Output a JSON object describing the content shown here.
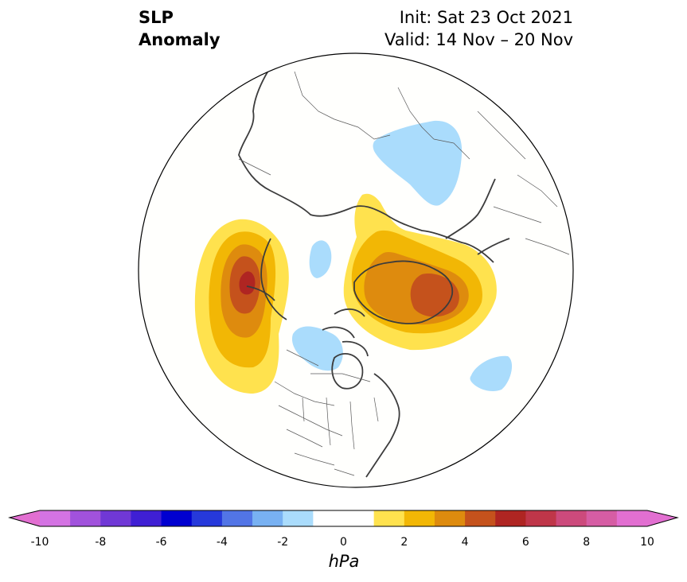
{
  "header": {
    "left_line1": "SLP",
    "left_line2": "Anomaly",
    "init": "Init: Sat 23 Oct 2021",
    "valid": "Valid: 14 Nov – 20 Nov"
  },
  "map": {
    "projection": "north-polar-stereographic",
    "features": [
      "coastlines",
      "country-borders",
      "us-state-borders",
      "canada-province-borders"
    ],
    "anomalies": [
      {
        "region": "Gulf of Alaska / NE Pacific",
        "sign": "positive",
        "peak_hpa": 6
      },
      {
        "region": "Greenland / Baffin Bay",
        "sign": "positive",
        "peak_hpa": 5
      },
      {
        "region": "Scandinavia / NW Russia",
        "sign": "negative",
        "peak_hpa": -1
      },
      {
        "region": "Beaufort Sea / Arctic",
        "sign": "negative",
        "peak_hpa": -1
      },
      {
        "region": "Hudson Bay / central Canada",
        "sign": "negative",
        "peak_hpa": -1
      },
      {
        "region": "Central North Atlantic",
        "sign": "negative",
        "peak_hpa": -1
      }
    ]
  },
  "colorbar": {
    "unit": "hPa",
    "min": -10,
    "max": 10,
    "step": 1,
    "extend": "both",
    "colors": [
      "#d473e3",
      "#a152dc",
      "#7038d6",
      "#3f1fd4",
      "#0000d0",
      "#2639db",
      "#5275e6",
      "#78b1f2",
      "#aadcfc",
      "#ffffff",
      "#ffffff",
      "#ffe24e",
      "#f2b705",
      "#de8b0e",
      "#c5521c",
      "#af2522",
      "#bf3649",
      "#cc4a7c",
      "#d65da4",
      "#e26fd1"
    ],
    "extend_low_color": "#e26fd1",
    "extend_high_color": "#e26fd1",
    "tick_labels": [
      "-10",
      "-8",
      "-6",
      "-4",
      "-2",
      "0",
      "2",
      "4",
      "6",
      "8",
      "10"
    ]
  }
}
